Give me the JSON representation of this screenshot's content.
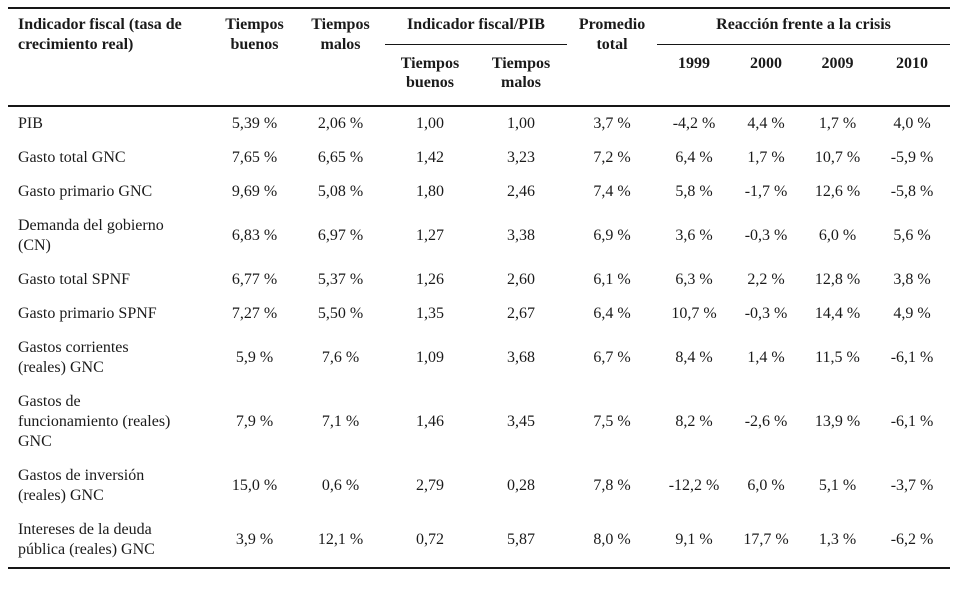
{
  "table": {
    "header": {
      "indicator": "Indicador fiscal (tasa de crecimiento real)",
      "good_times": "Tiempos buenos",
      "bad_times": "Tiempos malos",
      "indicator_pib_group": "Indicador fiscal/PIB",
      "sub_good_times": "Tiempos buenos",
      "sub_bad_times": "Tiempos malos",
      "promedio_total": "Promedio total",
      "crisis_group": "Reacción frente a la crisis",
      "years": [
        "1999",
        "2000",
        "2009",
        "2010"
      ]
    },
    "rows": [
      {
        "indicator": "PIB",
        "values": [
          "5,39 %",
          "2,06 %",
          "1,00",
          "1,00",
          "3,7 %",
          "-4,2 %",
          "4,4 %",
          "1,7 %",
          "4,0 %"
        ]
      },
      {
        "indicator": "Gasto total GNC",
        "values": [
          "7,65 %",
          "6,65 %",
          "1,42",
          "3,23",
          "7,2 %",
          "6,4 %",
          "1,7 %",
          "10,7 %",
          "-5,9 %"
        ]
      },
      {
        "indicator": "Gasto primario GNC",
        "values": [
          "9,69 %",
          "5,08 %",
          "1,80",
          "2,46",
          "7,4 %",
          "5,8 %",
          "-1,7 %",
          "12,6 %",
          "-5,8 %"
        ]
      },
      {
        "indicator": "Demanda del gobierno (CN)",
        "values": [
          "6,83 %",
          "6,97 %",
          "1,27",
          "3,38",
          "6,9 %",
          "3,6 %",
          "-0,3 %",
          "6,0 %",
          "5,6 %"
        ]
      },
      {
        "indicator": "Gasto total SPNF",
        "values": [
          "6,77 %",
          "5,37 %",
          "1,26",
          "2,60",
          "6,1 %",
          "6,3 %",
          "2,2 %",
          "12,8 %",
          "3,8 %"
        ]
      },
      {
        "indicator": "Gasto primario SPNF",
        "values": [
          "7,27 %",
          "5,50 %",
          "1,35",
          "2,67",
          "6,4 %",
          "10,7 %",
          "-0,3 %",
          "14,4 %",
          "4,9 %"
        ]
      },
      {
        "indicator": "Gastos corrientes (reales) GNC",
        "values": [
          "5,9 %",
          "7,6 %",
          "1,09",
          "3,68",
          "6,7 %",
          "8,4 %",
          "1,4 %",
          "11,5 %",
          "-6,1 %"
        ]
      },
      {
        "indicator": "Gastos de funcionamiento (reales) GNC",
        "values": [
          "7,9 %",
          "7,1 %",
          "1,46",
          "3,45",
          "7,5 %",
          "8,2 %",
          "-2,6 %",
          "13,9 %",
          "-6,1 %"
        ]
      },
      {
        "indicator": "Gastos de inversión (reales) GNC",
        "values": [
          "15,0 %",
          "0,6 %",
          "2,79",
          "0,28",
          "7,8 %",
          "-12,2 %",
          "6,0 %",
          "5,1 %",
          "-3,7 %"
        ]
      },
      {
        "indicator": "Intereses de la deuda pública (reales) GNC",
        "values": [
          "3,9 %",
          "12,1 %",
          "0,72",
          "5,87",
          "8,0 %",
          "9,1 %",
          "17,7 %",
          "1,3 %",
          "-6,2 %"
        ]
      }
    ]
  }
}
